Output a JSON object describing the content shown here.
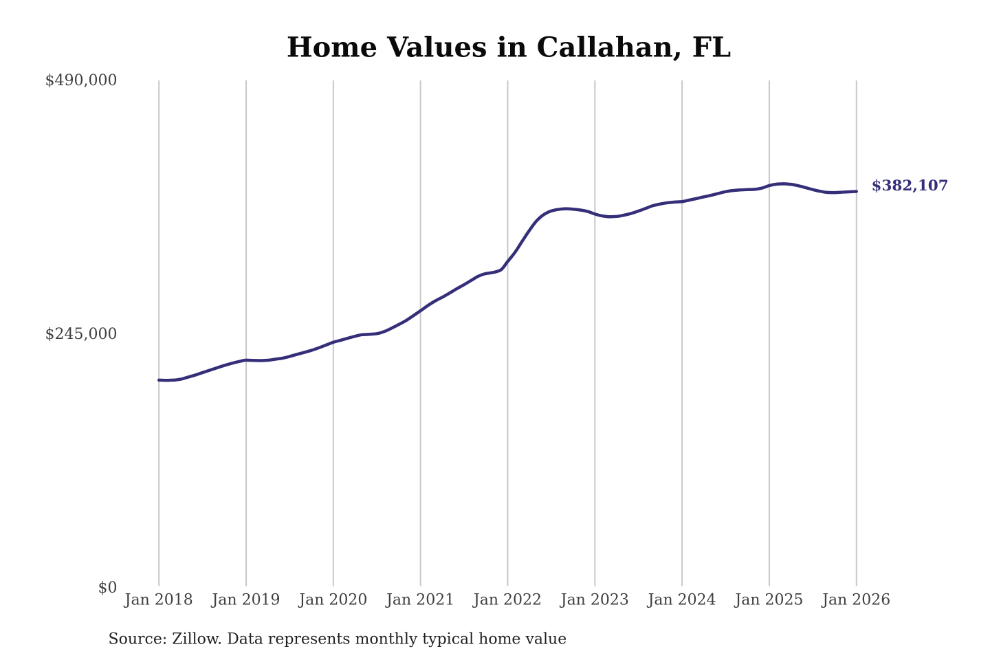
{
  "page": {
    "background": "#ffffff"
  },
  "chart_data": {
    "type": "line",
    "title": "Home Values in Callahan, FL",
    "source_note": "Source: Zillow. Data represents monthly typical home value",
    "end_label": "$382,107",
    "current_value": 382107,
    "xlabel": "",
    "ylabel": "",
    "ylim": [
      0,
      490000
    ],
    "grid": "vertical",
    "legend_position": "none",
    "colors": {
      "line": "#352f7a",
      "grid": "#c8c8c8",
      "title": "#0a0a0a",
      "axis_labels": "#3f3f3f",
      "source": "#1f1f1f",
      "annotation": "#352f7a",
      "background": "#ffffff"
    },
    "y_ticks": [
      {
        "label": "$0",
        "value": 0
      },
      {
        "label": "$245,000",
        "value": 245000
      },
      {
        "label": "$490,000",
        "value": 490000
      }
    ],
    "x_ticks": [
      {
        "label": "Jan 2018",
        "month": "2018-01"
      },
      {
        "label": "Jan 2019",
        "month": "2019-01"
      },
      {
        "label": "Jan 2020",
        "month": "2020-01"
      },
      {
        "label": "Jan 2021",
        "month": "2021-01"
      },
      {
        "label": "Jan 2022",
        "month": "2022-01"
      },
      {
        "label": "Jan 2023",
        "month": "2023-01"
      },
      {
        "label": "Jan 2024",
        "month": "2024-01"
      },
      {
        "label": "Jan 2025",
        "month": "2025-01"
      },
      {
        "label": "Jan 2026",
        "month": "2026-01"
      }
    ],
    "series": [
      {
        "name": "Monthly typical home value",
        "x": [
          "2018-01",
          "2018-02",
          "2018-03",
          "2018-04",
          "2018-05",
          "2018-06",
          "2018-07",
          "2018-08",
          "2018-09",
          "2018-10",
          "2018-11",
          "2018-12",
          "2019-01",
          "2019-02",
          "2019-03",
          "2019-04",
          "2019-05",
          "2019-06",
          "2019-07",
          "2019-08",
          "2019-09",
          "2019-10",
          "2019-11",
          "2019-12",
          "2020-01",
          "2020-02",
          "2020-03",
          "2020-04",
          "2020-05",
          "2020-06",
          "2020-07",
          "2020-08",
          "2020-09",
          "2020-10",
          "2020-11",
          "2020-12",
          "2021-01",
          "2021-02",
          "2021-03",
          "2021-04",
          "2021-05",
          "2021-06",
          "2021-07",
          "2021-08",
          "2021-09",
          "2021-10",
          "2021-11",
          "2021-12",
          "2022-01",
          "2022-02",
          "2022-03",
          "2022-04",
          "2022-05",
          "2022-06",
          "2022-07",
          "2022-08",
          "2022-09",
          "2022-10",
          "2022-11",
          "2022-12",
          "2023-01",
          "2023-02",
          "2023-03",
          "2023-04",
          "2023-05",
          "2023-06",
          "2023-07",
          "2023-08",
          "2023-09",
          "2023-10",
          "2023-11",
          "2023-12",
          "2024-01",
          "2024-02",
          "2024-03",
          "2024-04",
          "2024-05",
          "2024-06",
          "2024-07",
          "2024-08",
          "2024-09",
          "2024-10",
          "2024-11",
          "2024-12",
          "2025-01",
          "2025-02",
          "2025-03",
          "2025-04",
          "2025-05",
          "2025-06",
          "2025-07",
          "2025-08",
          "2025-09",
          "2025-10",
          "2025-11",
          "2025-12",
          "2026-01"
        ],
        "values": [
          199900,
          199700,
          199900,
          200800,
          202800,
          204800,
          207200,
          209500,
          211800,
          214100,
          216100,
          217800,
          219200,
          218900,
          218800,
          219100,
          220100,
          221100,
          222800,
          224800,
          226700,
          228700,
          231100,
          233800,
          236500,
          238400,
          240400,
          242300,
          243800,
          244200,
          244800,
          246800,
          250000,
          253600,
          257400,
          262100,
          266900,
          271900,
          276300,
          280000,
          284000,
          288200,
          292100,
          296300,
          300400,
          302800,
          303900,
          306100,
          314500,
          323300,
          334100,
          344600,
          353900,
          359900,
          363300,
          364800,
          365400,
          365000,
          364200,
          362800,
          360300,
          358500,
          357700,
          358000,
          359200,
          360900,
          363200,
          365800,
          368400,
          370000,
          371200,
          371900,
          372300,
          373800,
          375300,
          376900,
          378400,
          380200,
          381900,
          383000,
          383600,
          383900,
          384200,
          385400,
          387800,
          389200,
          389500,
          389000,
          387600,
          385800,
          383900,
          382300,
          381200,
          381000,
          381400,
          381800,
          382107
        ]
      }
    ]
  }
}
